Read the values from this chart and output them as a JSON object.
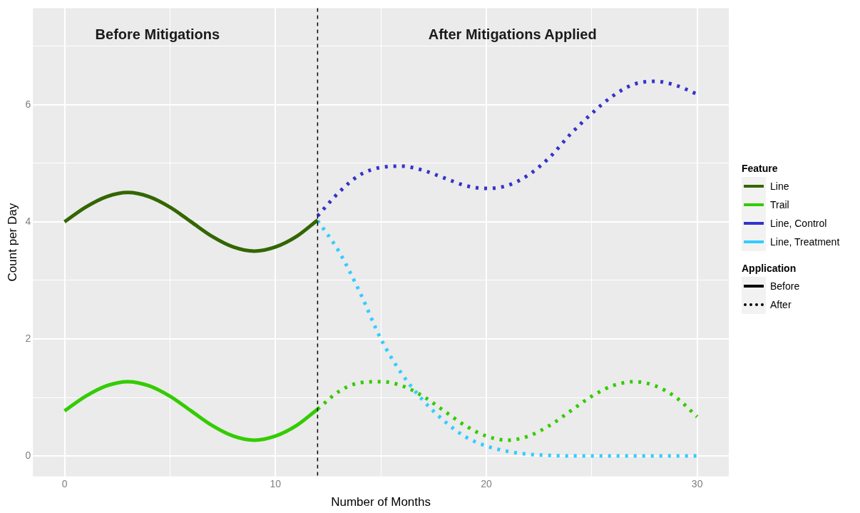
{
  "chart_data": {
    "type": "line",
    "xlabel": "Number of Months",
    "ylabel": "Count per Day",
    "xlim": [
      -1.5,
      31.5
    ],
    "ylim": [
      -0.35,
      7.65
    ],
    "xticks": [
      0,
      {
        "value": 5,
        "label": null
      },
      10,
      {
        "value": 15,
        "label": null
      },
      20,
      {
        "value": 25,
        "label": null
      },
      30
    ],
    "yticks": [
      0,
      {
        "value": 1,
        "label": null
      },
      2,
      {
        "value": 3,
        "label": null
      },
      4,
      {
        "value": 5,
        "label": null
      },
      6,
      {
        "value": 7,
        "label": null
      }
    ],
    "grid": true,
    "legend": "right",
    "legend_title": "Feature",
    "marker": "none",
    "series": [
      {
        "name": "Line",
        "color": "#336600",
        "line_style": "solid",
        "x": [
          0,
          1,
          2,
          3,
          4,
          5,
          6,
          7,
          8,
          9,
          10,
          11,
          12
        ],
        "values": [
          4,
          4.25,
          4.43,
          4.5,
          4.43,
          4.25,
          4,
          3.75,
          3.57,
          3.5,
          3.57,
          3.75,
          4.03
        ]
      },
      {
        "name": "Trail",
        "color": "#33cc00",
        "line_style": "solid",
        "x": [
          0,
          1,
          2,
          3,
          4,
          5,
          6,
          7,
          8,
          9,
          10,
          11,
          12
        ],
        "values": [
          0.77,
          1.02,
          1.2,
          1.27,
          1.2,
          1.02,
          0.77,
          0.52,
          0.34,
          0.27,
          0.34,
          0.52,
          0.8
        ]
      },
      {
        "name": "Line, Control",
        "color": "#3333cc",
        "line_style": "dotted",
        "x": [
          12,
          13,
          14,
          15,
          16,
          17,
          18,
          19,
          20,
          21,
          22,
          23,
          24,
          25,
          26,
          27,
          28,
          29,
          30
        ],
        "values": [
          4.1,
          4.5,
          4.8,
          4.93,
          4.95,
          4.88,
          4.75,
          4.62,
          4.57,
          4.62,
          4.8,
          5.1,
          5.5,
          5.85,
          6.15,
          6.35,
          6.4,
          6.33,
          6.18
        ]
      },
      {
        "name": "Line, Treatment",
        "color": "#33ccff",
        "line_style": "dotted",
        "x": [
          12,
          13,
          14,
          15,
          16,
          17,
          18,
          19,
          20,
          21,
          22,
          23,
          24,
          26,
          28,
          30
        ],
        "values": [
          4.02,
          3.5,
          2.8,
          2.0,
          1.4,
          0.95,
          0.6,
          0.33,
          0.17,
          0.08,
          0.03,
          0.01,
          0,
          0,
          0,
          0
        ]
      },
      {
        "color": "#33cc00",
        "line_style": "dotted",
        "x": [
          12,
          13,
          14,
          15,
          16,
          17,
          18,
          19,
          20,
          21,
          22,
          23,
          24,
          25,
          26,
          27,
          28,
          29,
          30
        ],
        "values": [
          0.8,
          1.1,
          1.25,
          1.27,
          1.2,
          1.02,
          0.77,
          0.52,
          0.34,
          0.27,
          0.34,
          0.52,
          0.77,
          1.02,
          1.2,
          1.27,
          1.2,
          1.0,
          0.67
        ]
      }
    ],
    "ref_lines": [
      {
        "axis": "x",
        "value": 12,
        "color": "#000000",
        "line_style": "dashed"
      }
    ],
    "annotations": [
      "Before Mitigations",
      "After Mitigations Applied",
      "Application",
      "Before",
      "After"
    ]
  }
}
